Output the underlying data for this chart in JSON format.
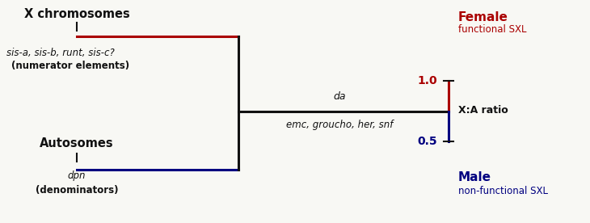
{
  "bg_color": "#f8f8f4",
  "red_color": "#aa0000",
  "blue_color": "#000080",
  "black_color": "#111111",
  "x_chrom_label": "X chromosomes",
  "numerator_label": "sis-a, sis-b, runt, sis-c?",
  "numerator_sub": "(numerator elements)",
  "autosomes_label": "Autosomes",
  "denominator_label": "dpn",
  "denominator_sub": "(denominators)",
  "da_label": "da",
  "emc_label": "emc, groucho, her, snf",
  "ratio_label": "X:A ratio",
  "female_label": "Female",
  "female_sub": "functional SXL",
  "male_label": "Male",
  "male_sub": "non-functional SXL",
  "val_1": "1.0",
  "val_05": "0.5",
  "lw_main": 2.2,
  "lw_tick": 1.5
}
